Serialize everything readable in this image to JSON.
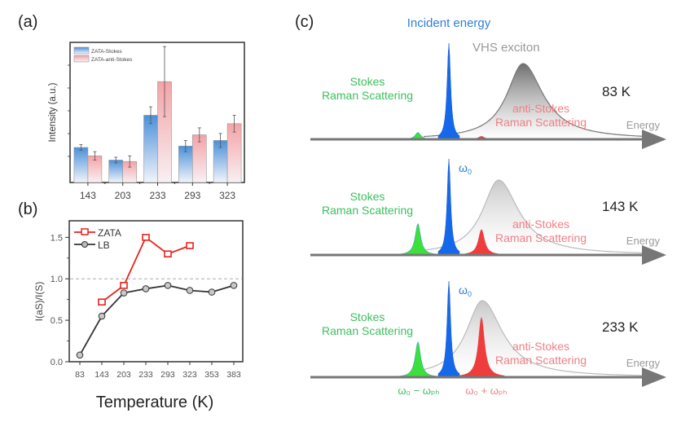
{
  "panel_labels": {
    "a": "(a)",
    "b": "(b)",
    "c": "(c)"
  },
  "colors": {
    "stokes_bar": "#4a90d9",
    "antistokes_bar": "#f08c8c",
    "zata_line": "#e8231f",
    "lb_line": "#333333",
    "incident": "#1569e8",
    "stokes_peak": "#33dd33",
    "antistokes_peak": "#ee3333",
    "exciton": "#888888",
    "stokes_text": "#3dbf5f",
    "antistokes_text": "#f07f86",
    "incident_text": "#2f7fd6",
    "energy_text": "#9a9a9a",
    "temp_text": "#222222"
  },
  "chart_data": [
    {
      "id": "a",
      "type": "bar",
      "title": "",
      "xlabel": "",
      "ylabel": "Intensity (a.u.)",
      "categories": [
        "143",
        "203",
        "233",
        "293",
        "323"
      ],
      "ylim": [
        0,
        1
      ],
      "legend": "top-left",
      "series": [
        {
          "name": "ZATA-Stokes",
          "values": [
            0.25,
            0.16,
            0.48,
            0.26,
            0.3
          ],
          "errors": [
            0.02,
            0.02,
            0.06,
            0.04,
            0.05
          ]
        },
        {
          "name": "ZATA-anti-Stokes",
          "values": [
            0.19,
            0.15,
            0.72,
            0.34,
            0.42
          ],
          "errors": [
            0.03,
            0.04,
            0.25,
            0.05,
            0.06
          ]
        }
      ]
    },
    {
      "id": "b",
      "type": "line",
      "title": "",
      "xlabel": "Temperature (K)",
      "ylabel": "I(aS)/I(S)",
      "categories": [
        "83",
        "143",
        "203",
        "233",
        "293",
        "323",
        "353",
        "383"
      ],
      "ylim": [
        0,
        1.7
      ],
      "yticks": [
        "0.0",
        "0.5",
        "1.0",
        "1.5"
      ],
      "ytick_values": [
        0,
        0.5,
        1.0,
        1.5
      ],
      "reference_line": 1.0,
      "legend": "top-left",
      "series": [
        {
          "name": "ZATA",
          "marker": "square",
          "values": [
            null,
            0.72,
            0.92,
            1.5,
            1.3,
            1.4,
            null,
            null
          ]
        },
        {
          "name": "LB",
          "marker": "circle",
          "values": [
            0.08,
            0.55,
            0.83,
            0.88,
            0.92,
            0.86,
            0.84,
            0.92
          ]
        }
      ]
    },
    {
      "id": "c",
      "type": "area",
      "title": "Incident energy",
      "exciton_label": "VHS exciton",
      "axis_label": "Energy",
      "stokes_label_line1": "Stokes",
      "stokes_label_line2": "Raman Scattering",
      "antistokes_label_line1": "anti-Stokes",
      "antistokes_label_line2": "Raman Scattering",
      "omega0_label": "ω",
      "omega0_sub": "0",
      "stokes_shift_label": "ω₀ − ωₚₕ",
      "antistokes_shift_label": "ω₀ + ωₚₕ",
      "rows": [
        {
          "temperature": "83 K",
          "show_omega0": false,
          "stokes_height": 0.07,
          "antistokes_height": 0.03,
          "exciton_height": 0.78,
          "exciton_center": 0.78
        },
        {
          "temperature": "143 K",
          "show_omega0": true,
          "stokes_height": 0.32,
          "antistokes_height": 0.26,
          "exciton_height": 0.78,
          "exciton_center": 0.6
        },
        {
          "temperature": "233 K",
          "show_omega0": true,
          "stokes_height": 0.36,
          "antistokes_height": 0.61,
          "exciton_height": 0.8,
          "exciton_center": 0.35,
          "show_shift_labels": true
        }
      ]
    }
  ]
}
